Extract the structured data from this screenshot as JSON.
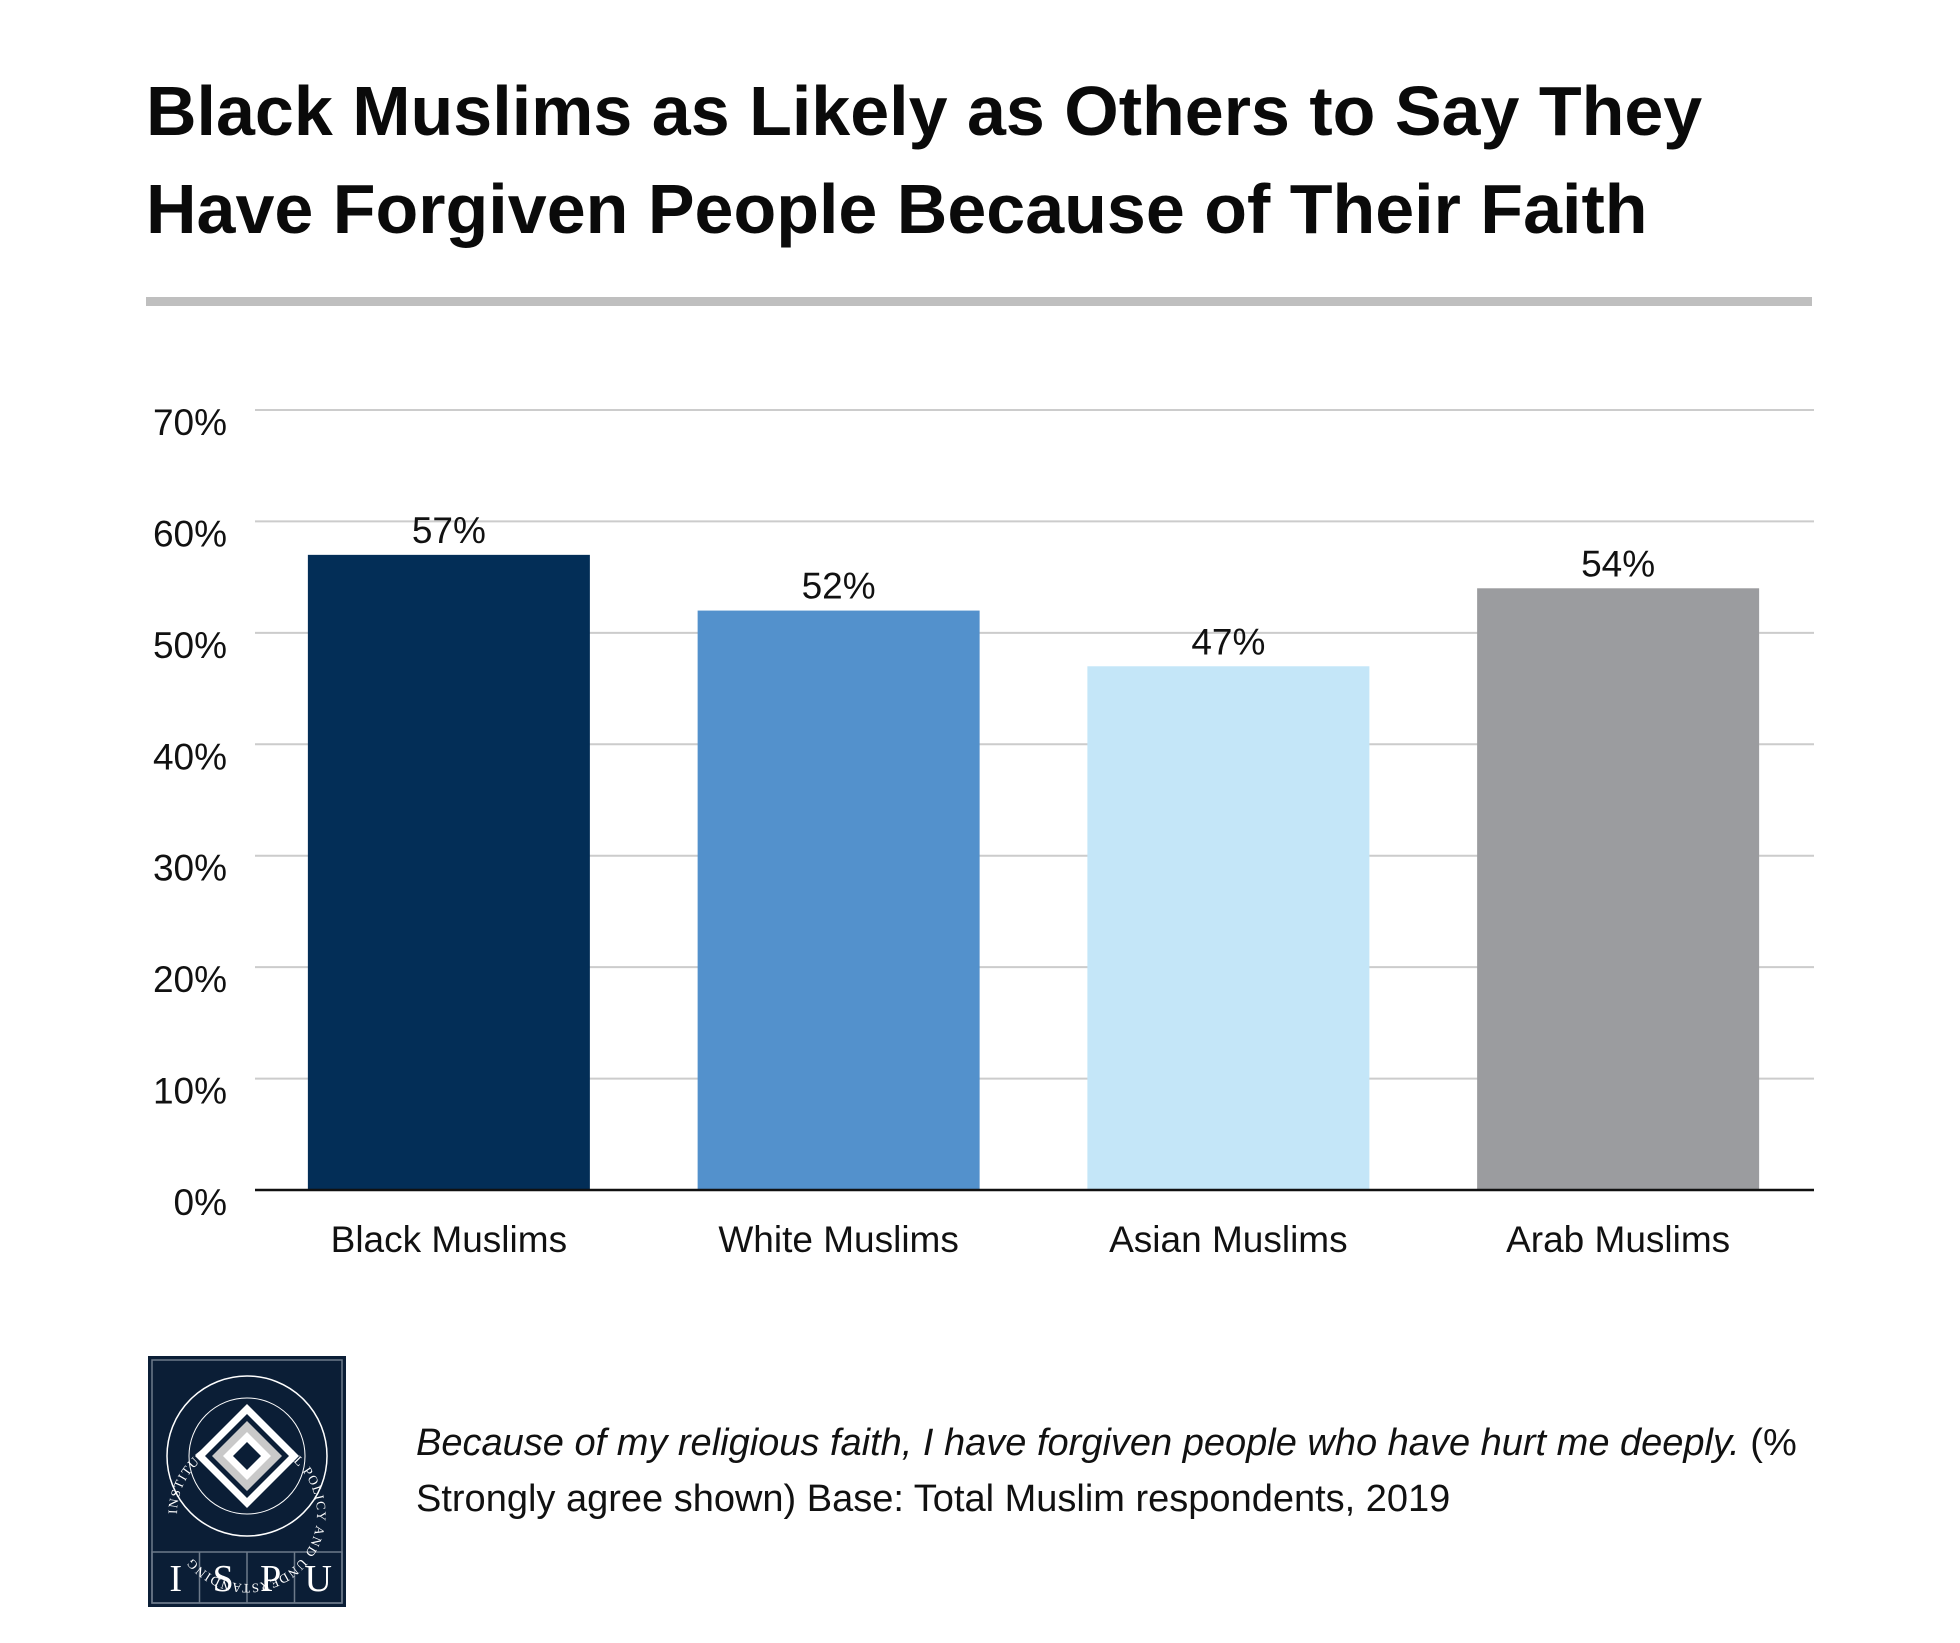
{
  "title_lines": [
    "Black Muslims as Likely as Others to Say They",
    "Have Forgiven People Because of Their Faith"
  ],
  "chart_data": {
    "type": "bar",
    "title": "Black Muslims as Likely as Others to Say They Have Forgiven People Because of Their Faith",
    "categories": [
      "Black Muslims",
      "White Muslims",
      "Asian Muslims",
      "Arab Muslims"
    ],
    "values": [
      57,
      52,
      47,
      54
    ],
    "value_labels": [
      "57%",
      "52%",
      "47%",
      "54%"
    ],
    "colors": [
      "#032e57",
      "#5391cc",
      "#c4e6f8",
      "#9b9c9f"
    ],
    "ylim": [
      0,
      70
    ],
    "yticks": [
      0,
      10,
      20,
      30,
      40,
      50,
      60,
      70
    ],
    "ytick_labels": [
      "0%",
      "10%",
      "20%",
      "30%",
      "40%",
      "50%",
      "60%",
      "70%"
    ],
    "xlabel": "",
    "ylabel": "",
    "grid": true
  },
  "footnote": {
    "question": "Because of my religious faith, I have forgiven people who have hurt me deeply.",
    "note": "(% Strongly agree shown) Base: Total Muslim respondents, 2019"
  },
  "logo": {
    "ring_text": "INSTITUTE FOR SOCIAL POLICY AND UNDERSTANDING",
    "letters": [
      "I",
      "S",
      "P",
      "U"
    ],
    "bg_color": "#0b1e36"
  },
  "colors": {
    "gridline": "#cccccc",
    "divider": "#bfbfbf",
    "baseline": "#111111"
  }
}
